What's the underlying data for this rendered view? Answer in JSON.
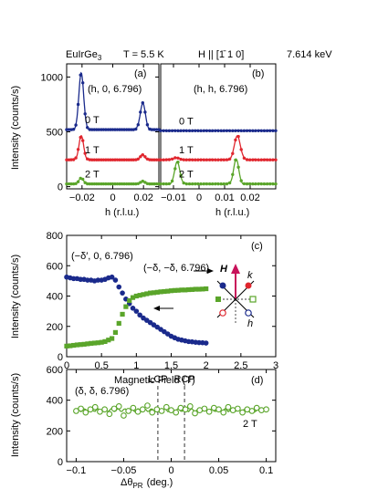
{
  "header": {
    "sample": "EuIrGe",
    "sample_sub": "3",
    "temp": "T = 5.5 K",
    "field": "H || [1̄ 1 0]",
    "energy": "7.614 keV"
  },
  "colors": {
    "blue": "#1a2a8c",
    "red": "#e0262e",
    "green": "#5aa52a",
    "magenta": "#c8125a"
  },
  "chart_data": [
    {
      "id": "a",
      "type": "line",
      "panel_label": "(a)",
      "annotation": "(h, 0, 6.796)",
      "xlabel": "h (r.l.u.)",
      "ylabel": "Intensity (counts/s)",
      "xlim": [
        -0.03,
        0.03
      ],
      "ylim": [
        -20,
        1120
      ],
      "xticks": [
        -0.02,
        0,
        0.02
      ],
      "yticks": [
        0,
        500,
        1000
      ],
      "series": [
        {
          "name": "0 T",
          "color": "blue",
          "baseline": 520,
          "peaks": [
            [
              -0.0205,
              525,
              0.0022
            ],
            [
              0.0195,
              245,
              0.0023
            ]
          ]
        },
        {
          "name": "1 T",
          "color": "red",
          "baseline": 245,
          "peaks": [
            [
              -0.0205,
              215,
              0.0022
            ],
            [
              0.0195,
              45,
              0.0022
            ]
          ]
        },
        {
          "name": "2 T",
          "color": "green",
          "baseline": 25,
          "peaks": [
            [
              -0.0205,
              55,
              0.002
            ],
            [
              0.0195,
              25,
              0.002
            ]
          ]
        }
      ]
    },
    {
      "id": "b",
      "type": "line",
      "panel_label": "(b)",
      "annotation": "(h, h, 6.796)",
      "xlabel": "h (r.l.u.)",
      "xlim": [
        -0.015,
        0.03
      ],
      "ylim": [
        -20,
        1120
      ],
      "xticks": [
        -0.01,
        0,
        0.01,
        0.02
      ],
      "series": [
        {
          "name": "0 T",
          "color": "blue",
          "baseline": 510,
          "peaks": []
        },
        {
          "name": "1 T",
          "color": "red",
          "baseline": 245,
          "peaks": [
            [
              0.015,
              225,
              0.0016
            ],
            [
              -0.009,
              20,
              0.0015
            ]
          ]
        },
        {
          "name": "2 T",
          "color": "green",
          "baseline": 25,
          "peaks": [
            [
              -0.0085,
              205,
              0.0014
            ],
            [
              0.0145,
              225,
              0.0014
            ]
          ]
        }
      ]
    },
    {
      "id": "c",
      "type": "scatter",
      "panel_label": "(c)",
      "xlabel": "Magnetic Field (T)",
      "ylabel": "Intensity (counts/s)",
      "xlim": [
        0,
        3
      ],
      "ylim": [
        0,
        800
      ],
      "xticks": [
        0,
        0.5,
        1,
        1.5,
        2,
        2.5,
        3
      ],
      "yticks": [
        0,
        200,
        400,
        600,
        800
      ],
      "series": [
        {
          "name": "(−δ′, 0, 6.796)",
          "color": "blue",
          "marker": "circle",
          "x": [
            0,
            0.05,
            0.1,
            0.15,
            0.2,
            0.25,
            0.3,
            0.35,
            0.4,
            0.45,
            0.5,
            0.55,
            0.6,
            0.65,
            0.7,
            0.75,
            0.8,
            0.85,
            0.9,
            0.95,
            1.0,
            1.05,
            1.1,
            1.15,
            1.2,
            1.25,
            1.3,
            1.35,
            1.4,
            1.45,
            1.5,
            1.55,
            1.6,
            1.65,
            1.7,
            1.75,
            1.8,
            1.85,
            1.9,
            1.95,
            2.0
          ],
          "y": [
            525,
            520,
            515,
            515,
            510,
            510,
            505,
            505,
            500,
            505,
            505,
            510,
            520,
            525,
            505,
            460,
            420,
            380,
            350,
            320,
            300,
            275,
            255,
            240,
            225,
            210,
            195,
            180,
            165,
            150,
            135,
            125,
            115,
            110,
            105,
            100,
            98,
            95,
            93,
            92,
            90
          ]
        },
        {
          "name": "(−δ, −δ, 6.796)",
          "color": "green",
          "marker": "square",
          "x": [
            0,
            0.05,
            0.1,
            0.15,
            0.2,
            0.25,
            0.3,
            0.35,
            0.4,
            0.45,
            0.5,
            0.55,
            0.6,
            0.65,
            0.7,
            0.75,
            0.8,
            0.85,
            0.9,
            0.95,
            1.0,
            1.05,
            1.1,
            1.15,
            1.2,
            1.25,
            1.3,
            1.35,
            1.4,
            1.45,
            1.5,
            1.55,
            1.6,
            1.65,
            1.7,
            1.75,
            1.8,
            1.85,
            1.9,
            1.95,
            2.0
          ],
          "y": [
            70,
            72,
            75,
            78,
            80,
            82,
            85,
            88,
            90,
            92,
            95,
            100,
            110,
            120,
            160,
            220,
            280,
            330,
            370,
            390,
            400,
            405,
            410,
            415,
            420,
            422,
            425,
            428,
            430,
            432,
            435,
            437,
            438,
            440,
            440,
            442,
            443,
            445,
            445,
            446,
            448
          ]
        }
      ],
      "inset": {
        "H": "H",
        "k": "k",
        "h": "h"
      }
    },
    {
      "id": "d",
      "type": "scatter",
      "panel_label": "(d)",
      "annotation": "(δ, δ, 6.796)",
      "field_note": "2 T",
      "xlabel": "Δθ",
      "xlabel_sub": "PR",
      "xlabel_unit": "(deg.)",
      "ylabel": "Intensity (counts/s)",
      "xlim": [
        -0.11,
        0.11
      ],
      "ylim": [
        0,
        600
      ],
      "xticks": [
        -0.1,
        -0.05,
        0,
        0.05,
        0.1
      ],
      "yticks": [
        0,
        200,
        400,
        600
      ],
      "vlines": [
        {
          "x": -0.014,
          "label": "LCP"
        },
        {
          "x": 0.014,
          "label": "RCP"
        }
      ],
      "mean": 335,
      "series": [
        {
          "name": "",
          "color": "green",
          "marker": "open-circle",
          "x": [
            -0.1,
            -0.095,
            -0.09,
            -0.085,
            -0.08,
            -0.075,
            -0.07,
            -0.065,
            -0.06,
            -0.055,
            -0.05,
            -0.045,
            -0.04,
            -0.035,
            -0.03,
            -0.025,
            -0.02,
            -0.015,
            -0.01,
            -0.005,
            0,
            0.005,
            0.01,
            0.015,
            0.02,
            0.025,
            0.03,
            0.035,
            0.04,
            0.045,
            0.05,
            0.055,
            0.06,
            0.065,
            0.07,
            0.075,
            0.08,
            0.085,
            0.09,
            0.095,
            0.1
          ],
          "y": [
            330,
            345,
            320,
            340,
            355,
            325,
            340,
            310,
            345,
            360,
            300,
            330,
            350,
            325,
            340,
            365,
            320,
            340,
            330,
            355,
            335,
            320,
            350,
            340,
            360,
            315,
            335,
            345,
            325,
            350,
            340,
            320,
            355,
            335,
            345,
            320,
            340,
            330,
            350,
            335,
            340
          ]
        }
      ]
    }
  ]
}
